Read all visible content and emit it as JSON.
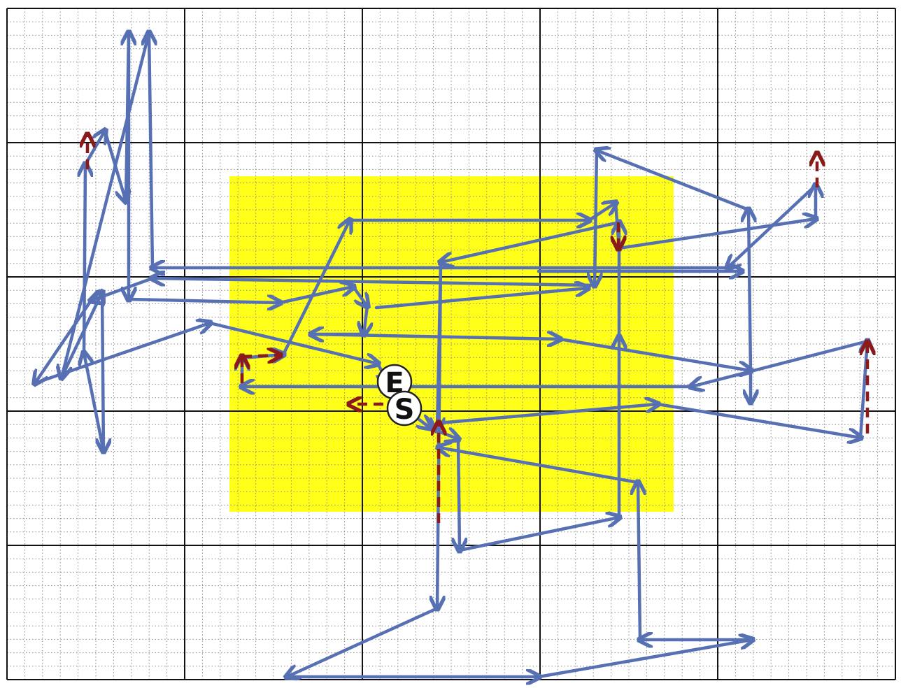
{
  "diagram": {
    "markers": {
      "start": "S",
      "end": "E"
    },
    "colors": {
      "background": "#ffffff",
      "minor_grid": "#8a8a8a",
      "major_grid": "#111111",
      "region": "#ffff1a",
      "path": "#5670b3",
      "correction": "#8b1a1a",
      "marker_fill": "#ffffff",
      "marker_stroke": "#222222"
    },
    "legend_icons": [
      "path-arrow-icon",
      "correction-arrow-icon"
    ]
  }
}
